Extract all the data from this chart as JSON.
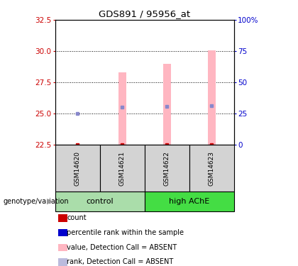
{
  "title": "GDS891 / 95956_at",
  "samples": [
    "GSM14620",
    "GSM14621",
    "GSM14622",
    "GSM14623"
  ],
  "ylim_left": [
    22.5,
    32.5
  ],
  "ylim_right": [
    0,
    100
  ],
  "yticks_left": [
    22.5,
    25.0,
    27.5,
    30.0,
    32.5
  ],
  "yticks_right": [
    0,
    25,
    50,
    75,
    100
  ],
  "ytick_labels_right": [
    "0",
    "25",
    "50",
    "75",
    "100%"
  ],
  "bar_values": [
    22.52,
    28.3,
    29.0,
    30.05
  ],
  "bar_bottom": 22.5,
  "bar_color": "#FFB6C1",
  "rank_dot_values": [
    25.0,
    25.55,
    25.6,
    25.62
  ],
  "rank_dot_color": "#8888CC",
  "count_dot_values": [
    22.52,
    22.52,
    22.52,
    22.52
  ],
  "count_dot_color": "#CC0000",
  "dotted_grid_values": [
    25.0,
    27.5,
    30.0
  ],
  "left_color": "#CC0000",
  "right_color": "#0000CC",
  "control_color": "#AADDAA",
  "highache_color": "#44DD44",
  "sample_box_color": "#D3D3D3",
  "legend_items": [
    {
      "color": "#CC0000",
      "label": "count"
    },
    {
      "color": "#0000CC",
      "label": "percentile rank within the sample"
    },
    {
      "color": "#FFB6C1",
      "label": "value, Detection Call = ABSENT"
    },
    {
      "color": "#BBBBDD",
      "label": "rank, Detection Call = ABSENT"
    }
  ],
  "group_label": "genotype/variation"
}
